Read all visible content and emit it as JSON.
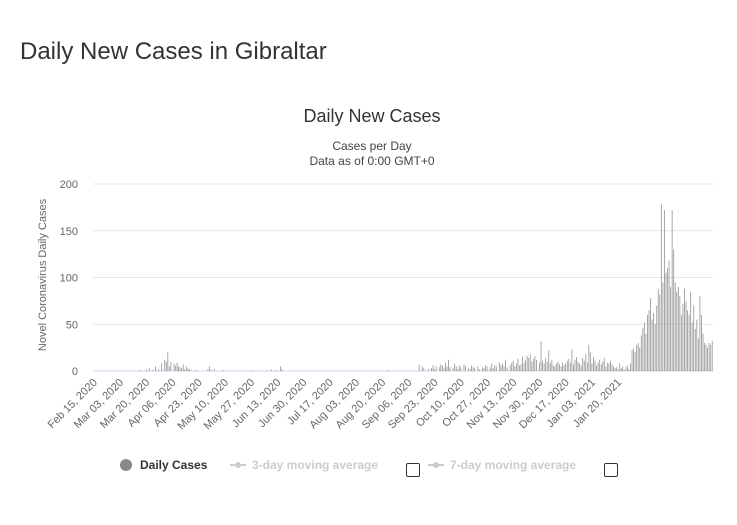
{
  "page": {
    "title": "Daily New Cases in Gibraltar"
  },
  "legend": {
    "daily_label": "Daily Cases",
    "ma3_label": "3-day moving average",
    "ma7_label": "7-day moving average",
    "colors": {
      "active": "#888888",
      "inactive": "#cccccc",
      "bars": "#999999",
      "grid": "#e6e6e6"
    }
  },
  "chart_data": {
    "type": "bar",
    "title": "Daily New Cases",
    "subtitle_line1": "Cases per Day",
    "subtitle_line2": "Data as of 0:00 GMT+0",
    "ylabel": "Novel Coronavirus Daily Cases",
    "xlabel": "",
    "ylim": [
      0,
      200
    ],
    "yticks": [
      0,
      50,
      100,
      150,
      200
    ],
    "grid": true,
    "legend_position": "bottom",
    "x_start": "Feb 15, 2020",
    "x_tick_labels": [
      "Feb 15, 2020",
      "Mar 03, 2020",
      "Mar 20, 2020",
      "Apr 06, 2020",
      "Apr 23, 2020",
      "May 10, 2020",
      "May 27, 2020",
      "Jun 13, 2020",
      "Jun 30, 2020",
      "Jul 17, 2020",
      "Aug 03, 2020",
      "Aug 20, 2020",
      "Sep 06, 2020",
      "Sep 23, 2020",
      "Oct 10, 2020",
      "Oct 27, 2020",
      "Nov 13, 2020",
      "Nov 30, 2020",
      "Dec 17, 2020",
      "Jan 03, 2021",
      "Jan 20, 2021"
    ],
    "series": [
      {
        "name": "Daily Cases",
        "values": [
          0,
          0,
          0,
          0,
          0,
          0,
          0,
          0,
          0,
          0,
          0,
          0,
          0,
          0,
          0,
          0,
          0,
          0,
          0,
          0,
          0,
          0,
          0,
          0,
          0,
          0,
          0,
          0,
          0,
          0,
          1,
          0,
          0,
          0,
          2,
          0,
          3,
          0,
          1,
          0,
          5,
          0,
          2,
          0,
          8,
          0,
          12,
          10,
          20,
          5,
          10,
          0,
          8,
          6,
          9,
          5,
          4,
          3,
          7,
          2,
          5,
          3,
          2,
          1,
          0,
          0,
          1,
          0,
          0,
          0,
          0,
          0,
          0,
          0,
          2,
          5,
          1,
          0,
          2,
          0,
          0,
          0,
          0,
          0,
          1,
          0,
          0,
          0,
          0,
          0,
          0,
          0,
          0,
          0,
          0,
          0,
          0,
          0,
          0,
          0,
          0,
          0,
          1,
          0,
          0,
          0,
          0,
          0,
          0,
          0,
          0,
          0,
          1,
          0,
          0,
          2,
          0,
          0,
          1,
          0,
          0,
          5,
          2,
          0,
          0,
          0,
          0,
          0,
          0,
          0,
          0,
          0,
          0,
          0,
          0,
          0,
          0,
          0,
          0,
          0,
          0,
          0,
          0,
          0,
          0,
          0,
          0,
          0,
          0,
          0,
          0,
          0,
          0,
          0,
          0,
          0,
          0,
          0,
          0,
          0,
          0,
          0,
          0,
          0,
          0,
          0,
          0,
          0,
          0,
          0,
          0,
          0,
          0,
          0,
          0,
          0,
          0,
          0,
          0,
          0,
          0,
          0,
          0,
          0,
          0,
          0,
          0,
          0,
          0,
          0,
          0,
          1,
          0,
          0,
          0,
          0,
          0,
          0,
          0,
          0,
          0,
          0,
          0,
          0,
          0,
          0,
          0,
          0,
          0,
          0,
          0,
          7,
          0,
          5,
          3,
          0,
          0,
          2,
          0,
          3,
          6,
          2,
          5,
          0,
          4,
          7,
          6,
          3,
          9,
          5,
          12,
          4,
          0,
          3,
          8,
          5,
          2,
          6,
          4,
          0,
          7,
          5,
          0,
          3,
          2,
          6,
          4,
          3,
          0,
          5,
          2,
          0,
          4,
          3,
          6,
          5,
          0,
          4,
          8,
          3,
          6,
          5,
          0,
          9,
          6,
          8,
          5,
          12,
          4,
          0,
          6,
          9,
          11,
          5,
          8,
          13,
          6,
          7,
          15,
          9,
          12,
          16,
          14,
          18,
          10,
          13,
          16,
          12,
          0,
          9,
          32,
          11,
          8,
          14,
          10,
          22,
          9,
          12,
          6,
          5,
          8,
          10,
          7,
          5,
          9,
          6,
          8,
          11,
          13,
          9,
          23,
          7,
          12,
          15,
          10,
          8,
          6,
          14,
          11,
          18,
          9,
          28,
          20,
          8,
          15,
          11,
          6,
          9,
          12,
          7,
          10,
          14,
          5,
          9,
          8,
          11,
          7,
          5,
          3,
          4,
          2,
          8,
          3,
          5,
          1,
          4,
          6,
          2,
          8,
          22,
          24,
          20,
          28,
          30,
          25,
          38,
          46,
          52,
          40,
          60,
          65,
          78,
          55,
          62,
          50,
          70,
          88,
          82,
          179,
          95,
          172,
          105,
          110,
          118,
          90,
          172,
          130,
          95,
          85,
          90,
          80,
          60,
          72,
          88,
          75,
          65,
          60,
          85,
          52,
          70,
          45,
          55,
          35,
          80,
          60,
          40,
          30,
          28,
          25,
          30,
          28,
          32
        ]
      }
    ]
  }
}
